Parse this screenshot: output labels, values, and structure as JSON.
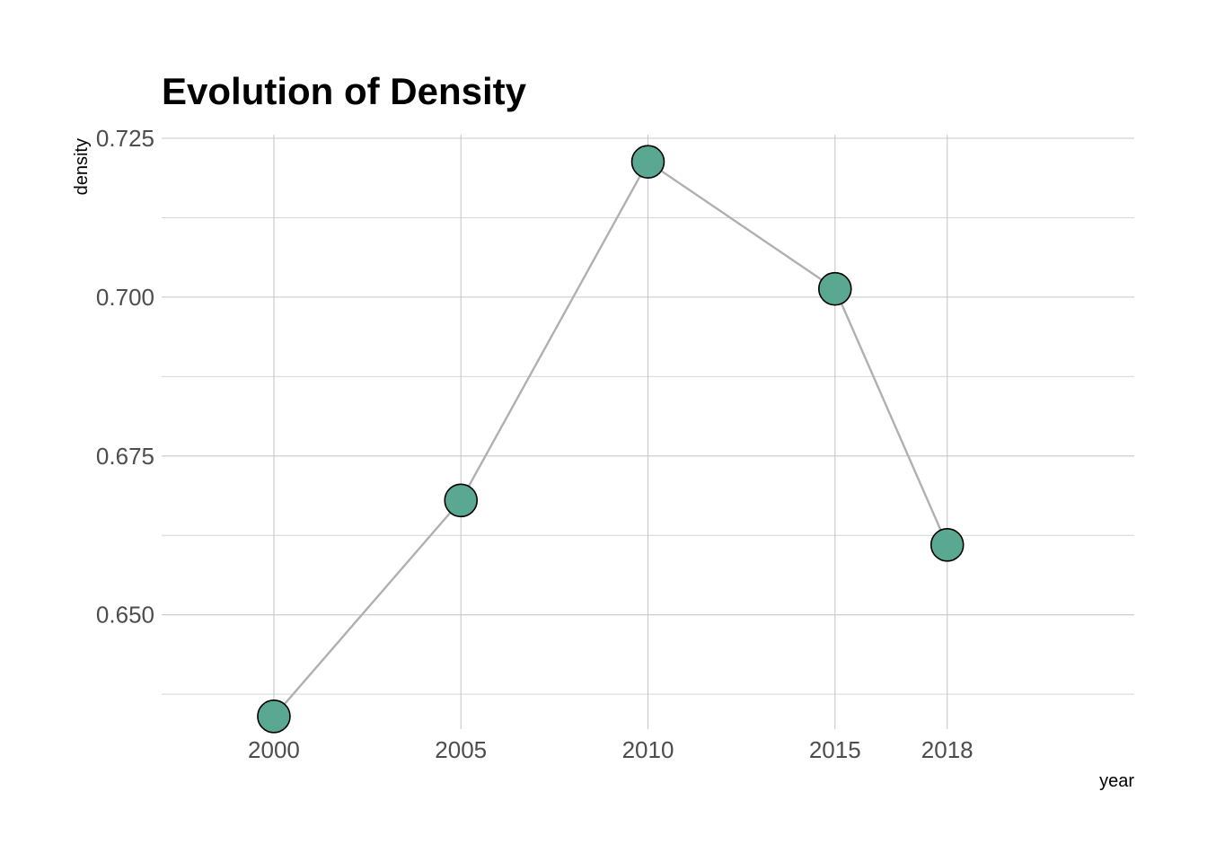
{
  "chart_data": {
    "type": "line",
    "title": "Evolution of Density",
    "xlabel": "year",
    "ylabel": "density",
    "x": [
      2000,
      2005,
      2010,
      2015,
      2018
    ],
    "x_tick_labels": [
      "2000",
      "2005",
      "2010",
      "2015",
      "2018"
    ],
    "y_ticks": [
      0.65,
      0.675,
      0.7,
      0.725
    ],
    "y_tick_labels": [
      "0.650",
      "0.675",
      "0.700",
      "0.725"
    ],
    "xlim": [
      1997,
      2023
    ],
    "ylim": [
      0.632,
      0.725
    ],
    "series": [
      {
        "values": [
          0.634,
          0.668,
          0.7213,
          0.7013,
          0.661
        ]
      }
    ],
    "grid": true,
    "legend": "none",
    "colors": {
      "point_fill": "#5aa891",
      "point_stroke": "#000000",
      "line": "#b0b0b0",
      "grid": "#c8c8c8"
    }
  }
}
